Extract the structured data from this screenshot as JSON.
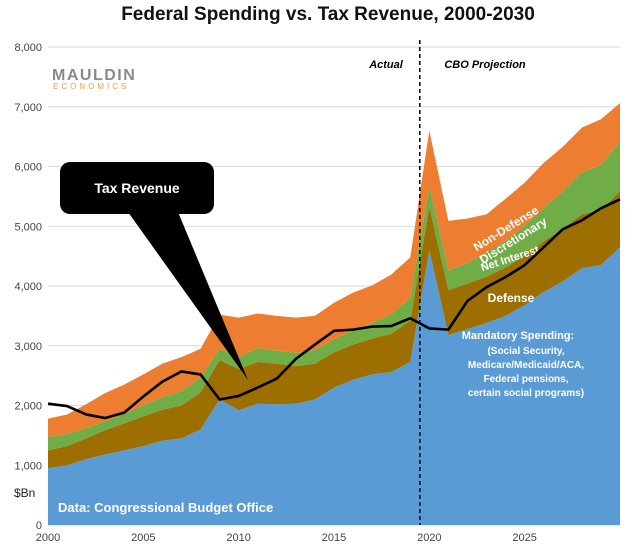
{
  "chart_data": {
    "type": "area",
    "title": "Federal Spending vs. Tax Revenue, 2000-2030",
    "ylabel": "$Bn",
    "xlim": [
      2000,
      2030
    ],
    "ylim": [
      0,
      8000
    ],
    "x_ticks": [
      2000,
      2005,
      2010,
      2015,
      2020,
      2025
    ],
    "y_ticks": [
      "0",
      "1,000",
      "2,000",
      "3,000",
      "4,000",
      "5,000",
      "6,000",
      "7,000",
      "8,000"
    ],
    "grid": true,
    "years": [
      2000,
      2001,
      2002,
      2003,
      2004,
      2005,
      2006,
      2007,
      2008,
      2009,
      2010,
      2011,
      2012,
      2013,
      2014,
      2015,
      2016,
      2017,
      2018,
      2019,
      2020,
      2021,
      2022,
      2023,
      2024,
      2025,
      2026,
      2027,
      2028,
      2029,
      2030
    ],
    "series": [
      {
        "name": "Mandatory Spending",
        "color": "#5b9bd5",
        "values": [
          950,
          1000,
          1100,
          1180,
          1250,
          1320,
          1410,
          1450,
          1600,
          2100,
          1920,
          2030,
          2020,
          2030,
          2100,
          2300,
          2430,
          2520,
          2560,
          2730,
          4600,
          3180,
          3280,
          3380,
          3500,
          3680,
          3900,
          4080,
          4300,
          4350,
          4650
        ]
      },
      {
        "name": "Defense",
        "color": "#9c6f00",
        "values": [
          300,
          320,
          350,
          410,
          450,
          500,
          520,
          550,
          620,
          660,
          690,
          700,
          680,
          630,
          600,
          590,
          590,
          600,
          640,
          690,
          730,
          750,
          760,
          780,
          810,
          830,
          850,
          880,
          900,
          920,
          940
        ]
      },
      {
        "name": "Net Interest",
        "color": "#70ad47",
        "values": [
          220,
          200,
          170,
          150,
          160,
          180,
          210,
          240,
          250,
          190,
          200,
          230,
          220,
          220,
          230,
          220,
          240,
          260,
          330,
          380,
          340,
          330,
          350,
          400,
          450,
          500,
          560,
          620,
          700,
          760,
          820
        ]
      },
      {
        "name": "Non-Defense Discretionary",
        "color": "#ed7d31",
        "values": [
          310,
          330,
          400,
          470,
          490,
          520,
          560,
          570,
          480,
          570,
          660,
          580,
          580,
          590,
          570,
          610,
          630,
          630,
          660,
          680,
          930,
          830,
          740,
          640,
          700,
          720,
          750,
          750,
          750,
          760,
          650
        ]
      }
    ],
    "tax_revenue": {
      "name": "Tax Revenue",
      "color": "#000000",
      "values": [
        2030,
        1990,
        1850,
        1790,
        1880,
        2150,
        2400,
        2570,
        2520,
        2100,
        2160,
        2300,
        2450,
        2780,
        3020,
        3250,
        3270,
        3320,
        3330,
        3460,
        3290,
        3270,
        3750,
        3980,
        4150,
        4350,
        4650,
        4950,
        5100,
        5300,
        5450
      ]
    },
    "divider_year": 2019.5,
    "annotations": {
      "actual": "Actual",
      "projection": "CBO Projection",
      "callout": "Tax Revenue",
      "non_defense_1": "Non-Defense",
      "non_defense_2": "Discretionary",
      "net_interest": "Net Interest",
      "defense": "Defense",
      "mandatory_1": "Mandatory Spending:",
      "mandatory_2": "(Social Security,",
      "mandatory_3": "Medicare/Medicaid/ACA,",
      "mandatory_4": "Federal pensions,",
      "mandatory_5": "certain social programs)",
      "source": "Data: Congressional Budget Office"
    },
    "logo": {
      "line1": "MAULDIN",
      "line2": "ECONOMICS",
      "color1": "#8a8a8a",
      "color2": "#e8a33d"
    }
  }
}
